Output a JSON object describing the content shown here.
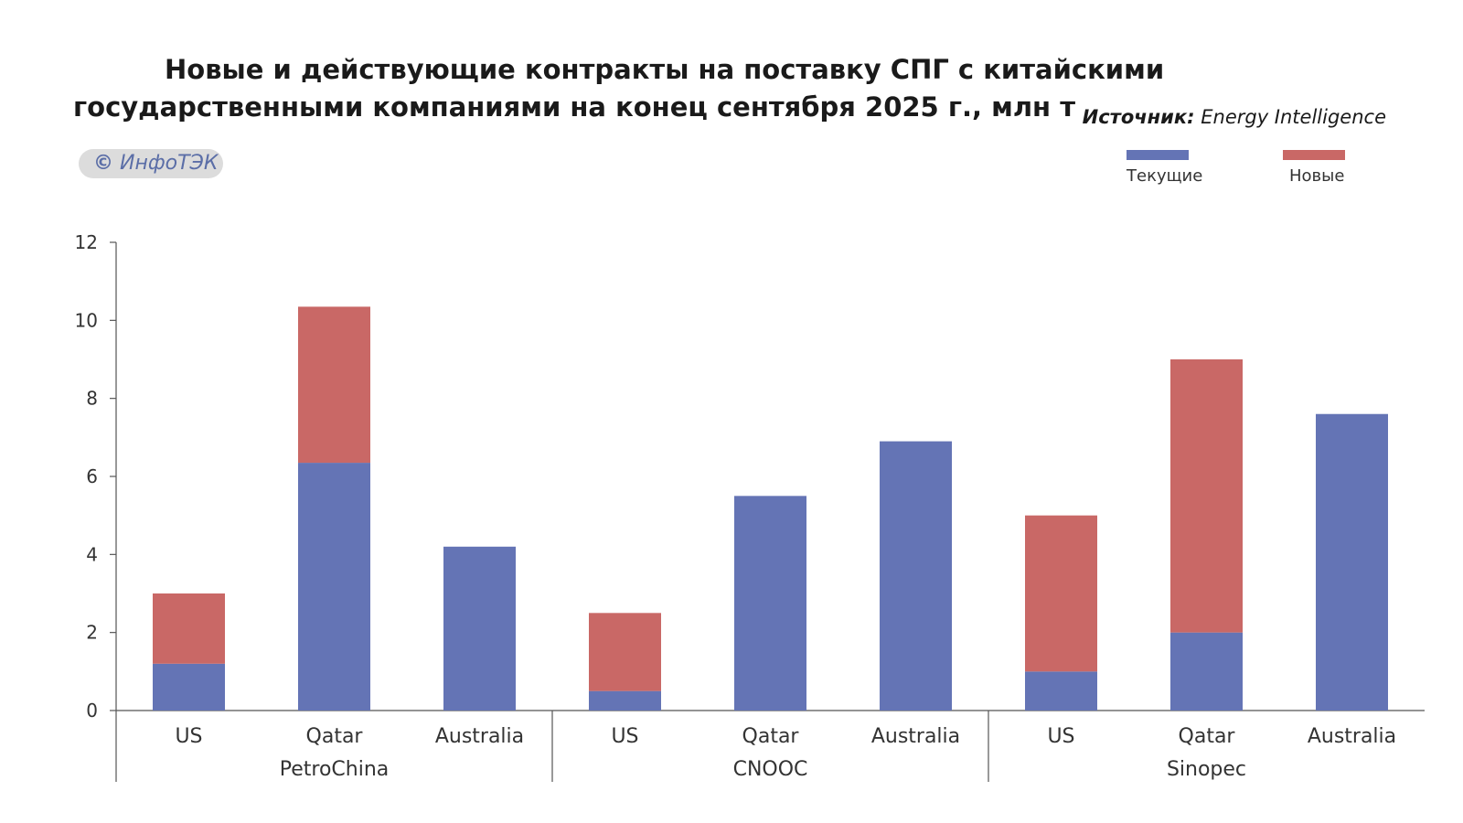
{
  "title": "Новые и действующие контракты на поставку СПГ с китайскими государственными компаниями на конец сентября 2025 г., млн т",
  "source": {
    "label": "Источник:",
    "value": "Energy Intelligence"
  },
  "watermark": {
    "symbol": "©",
    "text": "ИнфоТЭК"
  },
  "legend": {
    "current": {
      "label": "Текущие",
      "color": "#6474b5"
    },
    "new": {
      "label": "Новые",
      "color": "#c96866"
    }
  },
  "chart_data": {
    "type": "bar",
    "stacked": true,
    "title": "Новые и действующие контракты на поставку СПГ с китайскими государственными компаниями на конец сентября 2025 г., млн т",
    "ylim": [
      0,
      12
    ],
    "yticks": [
      0,
      2,
      4,
      6,
      8,
      10,
      12
    ],
    "grid": false,
    "legend_position": "top-right",
    "groups": [
      {
        "name": "PetroChina",
        "categories": [
          "US",
          "Qatar",
          "Australia"
        ]
      },
      {
        "name": "CNOOC",
        "categories": [
          "US",
          "Qatar",
          "Australia"
        ]
      },
      {
        "name": "Sinopec",
        "categories": [
          "US",
          "Qatar",
          "Australia"
        ]
      }
    ],
    "series": [
      {
        "name": "Текущие",
        "color": "#6474b5",
        "values": [
          1.2,
          6.35,
          4.2,
          0.5,
          5.5,
          6.9,
          1.0,
          2.0,
          7.6
        ]
      },
      {
        "name": "Новые",
        "color": "#c96866",
        "values": [
          1.8,
          4.0,
          0.0,
          2.0,
          0.0,
          0.0,
          4.0,
          7.0,
          0.0
        ]
      }
    ]
  }
}
